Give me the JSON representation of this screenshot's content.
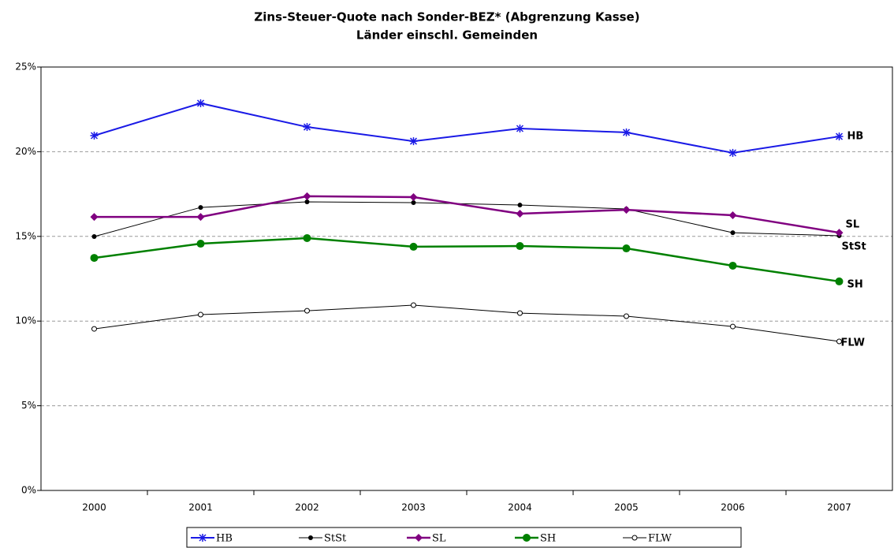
{
  "chart_data": {
    "type": "line",
    "title": "Zins-Steuer-Quote nach Sonder-BEZ* (Abgrenzung Kasse)",
    "subtitle": "Länder einschl. Gemeinden",
    "categories": [
      "2000",
      "2001",
      "2002",
      "2003",
      "2004",
      "2005",
      "2006",
      "2007"
    ],
    "series": [
      {
        "name": "HB",
        "color": "#1a1ae6",
        "marker": "asterisk",
        "values": [
          20.95,
          22.86,
          21.46,
          20.62,
          21.37,
          21.14,
          19.93,
          20.9
        ]
      },
      {
        "name": "StSt",
        "color": "#000000",
        "marker": "dot",
        "values": [
          14.99,
          16.71,
          17.04,
          16.99,
          16.85,
          16.62,
          15.22,
          15.04
        ]
      },
      {
        "name": "SL",
        "color": "#800080",
        "marker": "diamond",
        "values": [
          16.15,
          16.15,
          17.37,
          17.32,
          16.34,
          16.57,
          16.25,
          15.22
        ]
      },
      {
        "name": "SH",
        "color": "#008000",
        "marker": "circle",
        "values": [
          13.73,
          14.57,
          14.9,
          14.39,
          14.43,
          14.29,
          13.27,
          12.34
        ]
      },
      {
        "name": "FLW",
        "color": "#000000",
        "marker": "open-circle",
        "values": [
          9.54,
          10.38,
          10.61,
          10.94,
          10.47,
          10.29,
          9.68,
          8.8
        ]
      }
    ],
    "ylim": [
      0,
      25
    ],
    "yticks": [
      {
        "value": 0,
        "label": "0%"
      },
      {
        "value": 5,
        "label": "5%"
      },
      {
        "value": 10,
        "label": "10%"
      },
      {
        "value": 15,
        "label": "15%"
      },
      {
        "value": 20,
        "label": "20%"
      },
      {
        "value": 25,
        "label": "25%"
      }
    ],
    "grid": true,
    "legend": "bottom"
  }
}
